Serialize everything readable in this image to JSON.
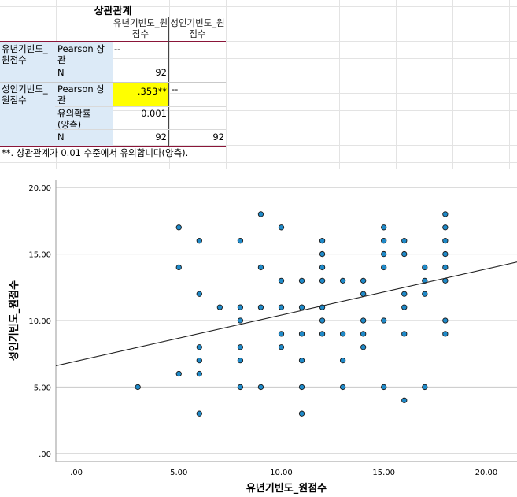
{
  "table": {
    "title": "상관관계",
    "col_headers": [
      "유년기빈도_원점수",
      "성인기빈도_원점수"
    ],
    "rows": [
      {
        "var": "유년기빈도_원점수",
        "stat": "Pearson 상관",
        "c1": "--",
        "c2": ""
      },
      {
        "var": "",
        "stat": "N",
        "c1": "92",
        "c2": ""
      },
      {
        "var": "성인기빈도_원점수",
        "stat": "Pearson 상관",
        "c1": ".353**",
        "c2": "--"
      },
      {
        "var": "",
        "stat": "유의확률 (양측)",
        "c1": "0.001",
        "c2": ""
      },
      {
        "var": "",
        "stat": "N",
        "c1": "92",
        "c2": "92"
      }
    ],
    "footnote": "**. 상관관계가 0.01 수준에서 유의합니다(양측).",
    "highlight_color": "#ffff00"
  },
  "chart_data": {
    "type": "scatter",
    "xlabel": "유년기빈도_원점수",
    "ylabel": "성인기빈도_원점수",
    "xlim": [
      -1,
      21.5
    ],
    "ylim": [
      -0.6,
      20.6
    ],
    "xticks": [
      ".00",
      "5.00",
      "10.00",
      "15.00",
      "20.00"
    ],
    "xtick_values": [
      0,
      5,
      10,
      15,
      20
    ],
    "yticks": [
      ".00",
      "5.00",
      "10.00",
      "15.00",
      "20.00"
    ],
    "ytick_values": [
      0,
      5,
      10,
      15,
      20
    ],
    "grid": "horizontal",
    "point_color": "#1f8ac9",
    "line_color": "#222222",
    "fit_line": {
      "x": [
        -1,
        21.5
      ],
      "y": [
        6.6,
        14.4
      ]
    },
    "points": [
      [
        3,
        5
      ],
      [
        5,
        17
      ],
      [
        5,
        14
      ],
      [
        5,
        6
      ],
      [
        6,
        16
      ],
      [
        6,
        12
      ],
      [
        6,
        8
      ],
      [
        6,
        7
      ],
      [
        6,
        6
      ],
      [
        6,
        3
      ],
      [
        7,
        11
      ],
      [
        8,
        16
      ],
      [
        8,
        11
      ],
      [
        8,
        10
      ],
      [
        8,
        8
      ],
      [
        8,
        7
      ],
      [
        8,
        5
      ],
      [
        9,
        18
      ],
      [
        9,
        14
      ],
      [
        9,
        11
      ],
      [
        9,
        5
      ],
      [
        10,
        17
      ],
      [
        10,
        13
      ],
      [
        10,
        11
      ],
      [
        10,
        9
      ],
      [
        10,
        8
      ],
      [
        11,
        13
      ],
      [
        11,
        11
      ],
      [
        11,
        9
      ],
      [
        11,
        7
      ],
      [
        11,
        5
      ],
      [
        11,
        3
      ],
      [
        12,
        16
      ],
      [
        12,
        15
      ],
      [
        12,
        14
      ],
      [
        12,
        13
      ],
      [
        12,
        11
      ],
      [
        12,
        10
      ],
      [
        12,
        9
      ],
      [
        13,
        13
      ],
      [
        13,
        9
      ],
      [
        13,
        7
      ],
      [
        13,
        5
      ],
      [
        14,
        13
      ],
      [
        14,
        12
      ],
      [
        14,
        10
      ],
      [
        14,
        9
      ],
      [
        14,
        8
      ],
      [
        15,
        17
      ],
      [
        15,
        16
      ],
      [
        15,
        15
      ],
      [
        15,
        14
      ],
      [
        15,
        10
      ],
      [
        15,
        5
      ],
      [
        16,
        16
      ],
      [
        16,
        15
      ],
      [
        16,
        12
      ],
      [
        16,
        11
      ],
      [
        16,
        9
      ],
      [
        16,
        4
      ],
      [
        17,
        14
      ],
      [
        17,
        13
      ],
      [
        17,
        12
      ],
      [
        17,
        5
      ],
      [
        18,
        18
      ],
      [
        18,
        17
      ],
      [
        18,
        16
      ],
      [
        18,
        15
      ],
      [
        18,
        14
      ],
      [
        18,
        13
      ],
      [
        18,
        10
      ],
      [
        18,
        9
      ]
    ]
  }
}
